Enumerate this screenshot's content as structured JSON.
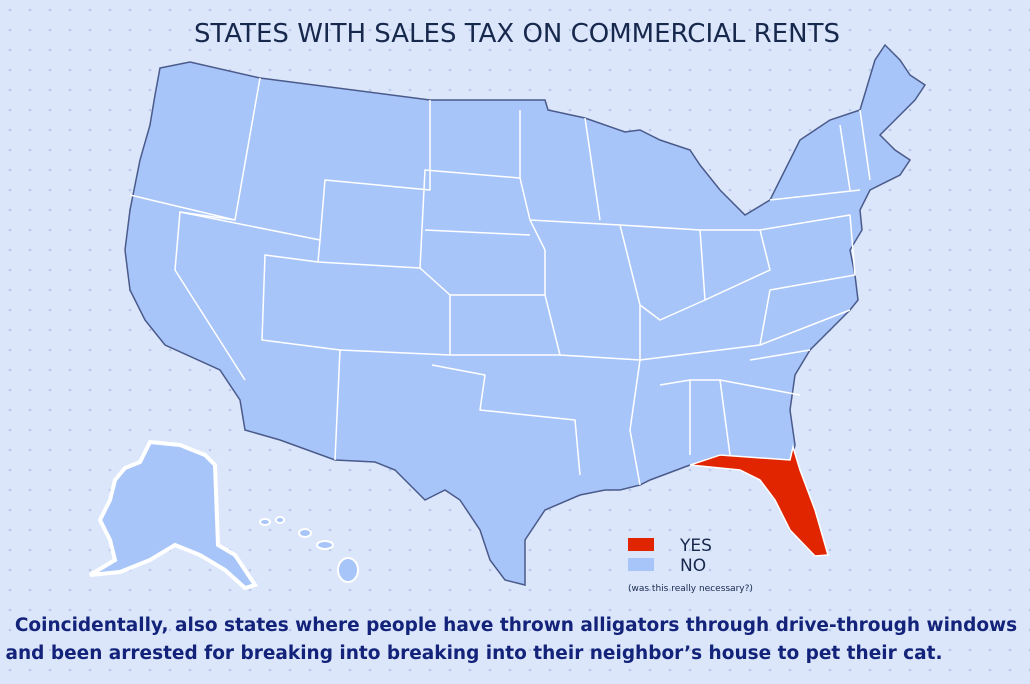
{
  "title": "STATES WITH SALES TAX ON COMMERCIAL RENTS",
  "legend": [
    {
      "label": "YES",
      "color": "#e12500"
    },
    {
      "label": "NO",
      "color": "#a8c5f9"
    }
  ],
  "legend_note": "(was this really necessary?)",
  "caption": [
    "Coincidentally, also states where people have thrown alligators through drive-through windows",
    "and been arrested for breaking into breaking into their neighbor’s house to pet their cat."
  ]
}
